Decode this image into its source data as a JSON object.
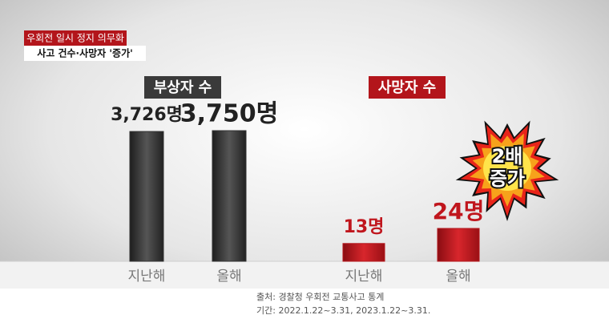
{
  "header": {
    "title": "우회전 일시 정지 의무화",
    "subtitle": "사고 건수·사망자 '증가'"
  },
  "chart_data": [
    {
      "type": "bar",
      "title": "부상자 수",
      "categories": [
        "지난해",
        "올해"
      ],
      "values": [
        3726,
        3750
      ],
      "value_labels": [
        "3,726명",
        "3,750명"
      ],
      "color": "#333333"
    },
    {
      "type": "bar",
      "title": "사망자 수",
      "categories": [
        "지난해",
        "올해"
      ],
      "values": [
        13,
        24
      ],
      "value_labels": [
        "13명",
        "24명"
      ],
      "color": "#b3151b",
      "annotation": [
        "2배",
        "증가"
      ]
    }
  ],
  "source": [
    "출처: 경찰청 우회전 교통사고 통계",
    "기간: 2022.1.22~3.31, 2023.1.22~3.31."
  ]
}
